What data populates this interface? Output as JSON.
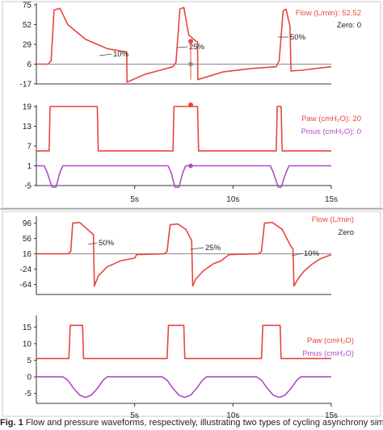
{
  "figure": {
    "caption_label": "Fig. 1",
    "caption": "Flow and pressure waveforms, respectively, illustrating two types of cycling asynchrony simulated"
  },
  "colors": {
    "flow": "#e8453c",
    "paw": "#e8453c",
    "pmus": "#b04ac8",
    "zero_line": "#888888",
    "marker_gray": "#8a8a8a",
    "axis": "#333333"
  },
  "chart_data": [
    {
      "type": "line",
      "name": "panel_a_flow",
      "ylim": [
        -17,
        75
      ],
      "y_ticks": [
        "75",
        "52",
        "29",
        "6",
        "-17"
      ],
      "y_tick_values": [
        75,
        52,
        29,
        6,
        -17
      ],
      "xlim": [
        0,
        15
      ],
      "zero_level": 6,
      "readouts": [
        {
          "label": "Flow (L/min):",
          "value": "52.52"
        },
        {
          "label": "Zero:",
          "value": "0"
        }
      ],
      "annotations": [
        "10%",
        "25%",
        "50%"
      ],
      "series": [
        {
          "name": "Flow (L/min)",
          "color": "#e8453c",
          "points": [
            [
              0,
              6
            ],
            [
              0.6,
              6
            ],
            [
              0.75,
              10
            ],
            [
              0.9,
              69
            ],
            [
              1.2,
              71
            ],
            [
              1.6,
              52
            ],
            [
              2.5,
              35
            ],
            [
              3.6,
              24
            ],
            [
              4.6,
              20
            ],
            [
              4.61,
              -15
            ],
            [
              5.5,
              -6
            ],
            [
              6.3,
              -1
            ],
            [
              6.95,
              3
            ],
            [
              7.1,
              8
            ],
            [
              7.3,
              70
            ],
            [
              7.5,
              72
            ],
            [
              7.75,
              40
            ],
            [
              8.1,
              33
            ],
            [
              8.2,
              32
            ],
            [
              8.21,
              -12
            ],
            [
              9.5,
              -3
            ],
            [
              11,
              1
            ],
            [
              12.2,
              3
            ],
            [
              12.35,
              10
            ],
            [
              12.55,
              68
            ],
            [
              12.7,
              70
            ],
            [
              12.9,
              50
            ],
            [
              12.95,
              -2
            ],
            [
              13.5,
              -1
            ],
            [
              15,
              3
            ]
          ]
        }
      ]
    },
    {
      "type": "line",
      "name": "panel_a_pressure",
      "ylim": [
        -5,
        19
      ],
      "y_ticks": [
        "19",
        "13",
        "7",
        "1",
        "-5"
      ],
      "y_tick_values": [
        19,
        13,
        7,
        1,
        -5
      ],
      "xlim": [
        0,
        15
      ],
      "x_ticks": [
        "5s",
        "10s",
        "15s"
      ],
      "x_tick_values": [
        5,
        10,
        15
      ],
      "readouts": [
        {
          "label": "Paw (cmH₂O):",
          "value": "20"
        },
        {
          "label": "Pmus (cmH₂O):",
          "value": "0"
        }
      ],
      "series": [
        {
          "name": "Paw (cmH₂O)",
          "color": "#e8453c",
          "points": [
            [
              0,
              5.5
            ],
            [
              0.65,
              5.5
            ],
            [
              0.7,
              19
            ],
            [
              3.1,
              19
            ],
            [
              3.15,
              5.5
            ],
            [
              6.95,
              5.5
            ],
            [
              7.0,
              19
            ],
            [
              8.2,
              19
            ],
            [
              8.25,
              5.5
            ],
            [
              12.2,
              5.5
            ],
            [
              12.25,
              19
            ],
            [
              12.45,
              19
            ],
            [
              12.5,
              5.5
            ],
            [
              15,
              5.5
            ]
          ]
        },
        {
          "name": "Pmus (cmH₂O)",
          "color": "#b04ac8",
          "points": [
            [
              0,
              1
            ],
            [
              0.4,
              1
            ],
            [
              0.55,
              -1
            ],
            [
              0.8,
              -5.5
            ],
            [
              1.0,
              -5.5
            ],
            [
              1.2,
              -1
            ],
            [
              1.35,
              1
            ],
            [
              6.7,
              1
            ],
            [
              6.85,
              -1
            ],
            [
              7.05,
              -5.5
            ],
            [
              7.25,
              -5.5
            ],
            [
              7.45,
              -1
            ],
            [
              7.6,
              1
            ],
            [
              11.9,
              1
            ],
            [
              12.05,
              -1
            ],
            [
              12.3,
              -5.5
            ],
            [
              12.45,
              -5.5
            ],
            [
              12.7,
              -1
            ],
            [
              12.85,
              1
            ],
            [
              15,
              1
            ]
          ]
        }
      ]
    },
    {
      "type": "line",
      "name": "panel_b_flow",
      "ylim": [
        -90,
        110
      ],
      "y_ticks": [
        "96",
        "56",
        "16",
        "-24",
        "-64"
      ],
      "y_tick_values": [
        96,
        56,
        16,
        -24,
        -64
      ],
      "xlim": [
        0,
        15
      ],
      "zero_level": 16,
      "readouts": [
        {
          "label": "Flow (L/min)",
          "value": ""
        },
        {
          "label": "Zero",
          "value": ""
        }
      ],
      "annotations": [
        "50%",
        "25%",
        "10%"
      ],
      "series": [
        {
          "name": "Flow (L/min)",
          "color": "#e8453c",
          "points": [
            [
              0,
              16
            ],
            [
              1.6,
              16
            ],
            [
              1.75,
              22
            ],
            [
              1.85,
              96
            ],
            [
              2.2,
              98
            ],
            [
              2.6,
              80
            ],
            [
              2.9,
              66
            ],
            [
              2.95,
              -68
            ],
            [
              3.1,
              -48
            ],
            [
              3.2,
              -38
            ],
            [
              3.25,
              -36
            ],
            [
              3.6,
              -18
            ],
            [
              4.3,
              -2
            ],
            [
              5.0,
              5
            ],
            [
              5.1,
              14
            ],
            [
              6.5,
              16
            ],
            [
              6.65,
              22
            ],
            [
              6.8,
              92
            ],
            [
              7.2,
              94
            ],
            [
              7.6,
              80
            ],
            [
              7.9,
              51
            ],
            [
              7.95,
              -68
            ],
            [
              8.1,
              -50
            ],
            [
              8.5,
              -28
            ],
            [
              9.0,
              -10
            ],
            [
              9.4,
              -2
            ],
            [
              9.6,
              6
            ],
            [
              9.8,
              14
            ],
            [
              11.3,
              16
            ],
            [
              11.45,
              22
            ],
            [
              11.6,
              96
            ],
            [
              12.0,
              98
            ],
            [
              12.5,
              80
            ],
            [
              12.9,
              40
            ],
            [
              13.05,
              28
            ],
            [
              13.1,
              -68
            ],
            [
              13.3,
              -50
            ],
            [
              13.6,
              -30
            ],
            [
              14.0,
              -12
            ],
            [
              14.4,
              2
            ],
            [
              14.8,
              10
            ],
            [
              15,
              14
            ]
          ]
        }
      ]
    },
    {
      "type": "line",
      "name": "panel_b_pressure",
      "ylim": [
        -8,
        18
      ],
      "y_ticks": [
        "15",
        "10",
        "5",
        "0",
        "-5"
      ],
      "y_tick_values": [
        15,
        10,
        5,
        0,
        -5
      ],
      "xlim": [
        0,
        15
      ],
      "x_ticks": [
        "5s",
        "10s",
        "15s"
      ],
      "x_tick_values": [
        5,
        10,
        15
      ],
      "readouts": [
        {
          "label": "Paw (cmH₂O)",
          "value": ""
        },
        {
          "label": "Pmus (cmH₂O)",
          "value": ""
        }
      ],
      "series": [
        {
          "name": "Paw (cmH₂O)",
          "color": "#e8453c",
          "points": [
            [
              0,
              5.5
            ],
            [
              1.65,
              5.5
            ],
            [
              1.72,
              15.5
            ],
            [
              2.35,
              15.5
            ],
            [
              2.4,
              5.5
            ],
            [
              6.65,
              5.5
            ],
            [
              6.72,
              15.5
            ],
            [
              7.5,
              15.5
            ],
            [
              7.55,
              5.5
            ],
            [
              11.45,
              5.5
            ],
            [
              11.52,
              15.5
            ],
            [
              12.4,
              15.5
            ],
            [
              12.45,
              5.5
            ],
            [
              15,
              5.5
            ]
          ]
        },
        {
          "name": "Pmus (cmH₂O)",
          "color": "#b04ac8",
          "points": [
            [
              0,
              0
            ],
            [
              1.35,
              0
            ],
            [
              1.6,
              -1
            ],
            [
              1.9,
              -3.5
            ],
            [
              2.2,
              -5.5
            ],
            [
              2.5,
              -6.2
            ],
            [
              2.8,
              -5.5
            ],
            [
              3.1,
              -3.5
            ],
            [
              3.4,
              -1
            ],
            [
              3.6,
              0
            ],
            [
              6.4,
              0
            ],
            [
              6.65,
              -1
            ],
            [
              6.95,
              -3.5
            ],
            [
              7.25,
              -5.5
            ],
            [
              7.55,
              -6.2
            ],
            [
              7.85,
              -5.5
            ],
            [
              8.15,
              -3.5
            ],
            [
              8.45,
              -1
            ],
            [
              8.65,
              0
            ],
            [
              11.2,
              0
            ],
            [
              11.45,
              -1
            ],
            [
              11.75,
              -3.5
            ],
            [
              12.05,
              -5.5
            ],
            [
              12.35,
              -6.2
            ],
            [
              12.65,
              -5.5
            ],
            [
              12.95,
              -3.5
            ],
            [
              13.25,
              -1
            ],
            [
              13.45,
              0
            ],
            [
              15,
              0
            ]
          ]
        }
      ]
    }
  ]
}
